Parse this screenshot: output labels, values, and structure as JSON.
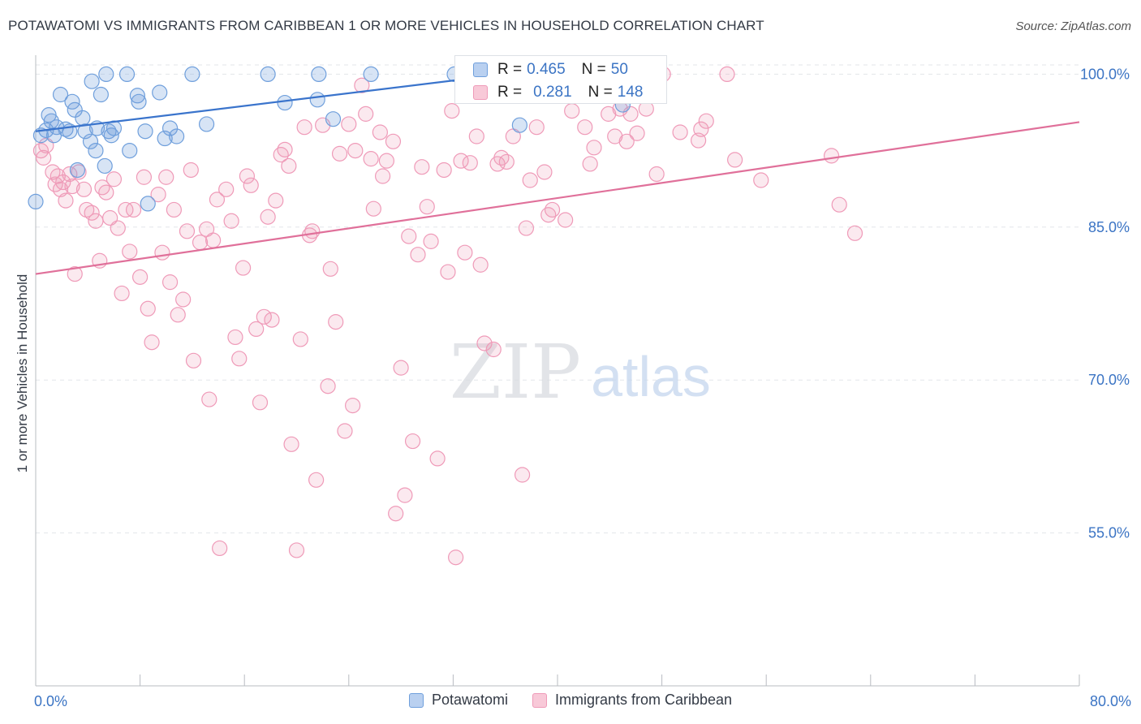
{
  "header": {
    "title": "POTAWATOMI VS IMMIGRANTS FROM CARIBBEAN 1 OR MORE VEHICLES IN HOUSEHOLD CORRELATION CHART",
    "source": "Source: ZipAtlas.com"
  },
  "watermark": {
    "zip": "ZIP",
    "atlas": "atlas"
  },
  "legend_top": {
    "r_label": "R =",
    "n_label": "N =",
    "rows": [
      {
        "r": "0.465",
        "n": "50"
      },
      {
        "r": "0.281",
        "n": "148"
      }
    ]
  },
  "chart_data": {
    "type": "scatter",
    "title": "POTAWATOMI VS IMMIGRANTS FROM CARIBBEAN 1 OR MORE VEHICLES IN HOUSEHOLD CORRELATION CHART",
    "xlabel": "",
    "ylabel": "1 or more Vehicles in Household",
    "xlim": [
      0,
      80
    ],
    "ylim": [
      40,
      102.5
    ],
    "x_tick_labels": [
      "0.0%",
      "80.0%"
    ],
    "y_ticks": [
      55,
      70,
      85,
      100
    ],
    "y_tick_labels": [
      "55.0%",
      "70.0%",
      "85.0%",
      "100.0%"
    ],
    "grid": true,
    "legend_position": "bottom",
    "colors": {
      "blue": "#6f9fdc",
      "pink": "#ef9ab8",
      "blue_line": "#3a74cc",
      "pink_line": "#e0709a",
      "tick_label": "#3b74c4"
    },
    "series": [
      {
        "name": "Potawatomi",
        "color": "blue",
        "r": 0.465,
        "n": 50,
        "trend": {
          "x": [
            0.0,
            36.0
          ],
          "y": [
            94.4,
            100.0
          ]
        },
        "points": [
          [
            0.0,
            87.5
          ],
          [
            0.4,
            94.0
          ],
          [
            0.8,
            94.5
          ],
          [
            1.0,
            96.0
          ],
          [
            1.2,
            95.4
          ],
          [
            1.4,
            94.0
          ],
          [
            1.6,
            94.8
          ],
          [
            1.9,
            98.0
          ],
          [
            2.3,
            94.6
          ],
          [
            2.6,
            94.4
          ],
          [
            2.8,
            97.3
          ],
          [
            3.0,
            96.5
          ],
          [
            3.2,
            90.6
          ],
          [
            3.6,
            95.7
          ],
          [
            3.8,
            94.4
          ],
          [
            4.2,
            93.4
          ],
          [
            4.3,
            99.3
          ],
          [
            4.6,
            92.5
          ],
          [
            4.7,
            94.7
          ],
          [
            5.0,
            98.0
          ],
          [
            5.3,
            91.0
          ],
          [
            5.4,
            100.0
          ],
          [
            5.6,
            94.4
          ],
          [
            5.8,
            94.0
          ],
          [
            6.0,
            94.7
          ],
          [
            7.0,
            100.0
          ],
          [
            7.2,
            92.5
          ],
          [
            7.8,
            97.9
          ],
          [
            7.9,
            97.3
          ],
          [
            8.4,
            94.4
          ],
          [
            8.6,
            87.3
          ],
          [
            9.5,
            98.2
          ],
          [
            9.9,
            93.7
          ],
          [
            10.3,
            94.7
          ],
          [
            10.8,
            93.9
          ],
          [
            12.0,
            100.0
          ],
          [
            13.1,
            95.1
          ],
          [
            17.8,
            100.0
          ],
          [
            19.1,
            97.2
          ],
          [
            21.7,
            100.0
          ],
          [
            21.6,
            97.5
          ],
          [
            22.8,
            95.6
          ],
          [
            25.7,
            100.0
          ],
          [
            32.1,
            100.0
          ],
          [
            34.6,
            98.6
          ],
          [
            34.9,
            99.7
          ],
          [
            37.1,
            95.0
          ],
          [
            39.9,
            100.0
          ],
          [
            43.9,
            99.8
          ],
          [
            45.0,
            97.0
          ]
        ]
      },
      {
        "name": "Immigrants from Caribbean",
        "color": "pink",
        "r": 0.281,
        "n": 148,
        "trend": {
          "x": [
            0.0,
            80.0
          ],
          "y": [
            80.4,
            95.3
          ]
        },
        "points": [
          [
            0.4,
            92.5
          ],
          [
            0.6,
            91.8
          ],
          [
            0.8,
            93.0
          ],
          [
            1.3,
            90.4
          ],
          [
            1.5,
            89.2
          ],
          [
            1.7,
            90.0
          ],
          [
            1.9,
            88.7
          ],
          [
            2.1,
            89.4
          ],
          [
            2.3,
            87.6
          ],
          [
            2.6,
            90.2
          ],
          [
            2.8,
            89.0
          ],
          [
            3.0,
            80.4
          ],
          [
            3.3,
            90.4
          ],
          [
            3.7,
            88.7
          ],
          [
            3.9,
            86.7
          ],
          [
            4.3,
            86.4
          ],
          [
            4.6,
            85.6
          ],
          [
            4.9,
            81.7
          ],
          [
            5.1,
            88.9
          ],
          [
            5.4,
            88.4
          ],
          [
            5.7,
            85.9
          ],
          [
            6.0,
            89.7
          ],
          [
            6.3,
            84.9
          ],
          [
            6.6,
            78.5
          ],
          [
            6.9,
            86.7
          ],
          [
            7.2,
            82.6
          ],
          [
            7.5,
            86.7
          ],
          [
            8.0,
            80.1
          ],
          [
            8.3,
            89.9
          ],
          [
            8.6,
            77.0
          ],
          [
            8.9,
            73.7
          ],
          [
            9.4,
            88.2
          ],
          [
            9.7,
            82.5
          ],
          [
            10.0,
            89.9
          ],
          [
            10.3,
            79.6
          ],
          [
            10.6,
            86.7
          ],
          [
            10.9,
            76.4
          ],
          [
            11.3,
            77.9
          ],
          [
            11.6,
            84.6
          ],
          [
            11.9,
            90.6
          ],
          [
            12.1,
            71.9
          ],
          [
            12.6,
            83.5
          ],
          [
            13.1,
            84.8
          ],
          [
            13.3,
            68.1
          ],
          [
            13.6,
            83.7
          ],
          [
            13.9,
            87.7
          ],
          [
            14.1,
            53.5
          ],
          [
            14.6,
            88.7
          ],
          [
            15.0,
            85.6
          ],
          [
            15.3,
            74.2
          ],
          [
            15.6,
            72.1
          ],
          [
            15.9,
            81.0
          ],
          [
            16.2,
            90.0
          ],
          [
            16.5,
            89.1
          ],
          [
            16.9,
            75.0
          ],
          [
            17.2,
            67.8
          ],
          [
            17.5,
            76.2
          ],
          [
            17.8,
            86.0
          ],
          [
            18.1,
            75.9
          ],
          [
            18.4,
            87.6
          ],
          [
            18.8,
            92.1
          ],
          [
            19.1,
            92.6
          ],
          [
            19.4,
            91.0
          ],
          [
            19.6,
            63.7
          ],
          [
            20.0,
            53.3
          ],
          [
            20.3,
            74.0
          ],
          [
            20.6,
            94.8
          ],
          [
            21.0,
            84.2
          ],
          [
            21.2,
            84.6
          ],
          [
            21.5,
            60.2
          ],
          [
            22.0,
            95.0
          ],
          [
            22.4,
            69.4
          ],
          [
            22.6,
            80.9
          ],
          [
            23.0,
            75.7
          ],
          [
            23.3,
            92.2
          ],
          [
            23.7,
            65.0
          ],
          [
            24.0,
            95.1
          ],
          [
            24.3,
            67.5
          ],
          [
            24.5,
            92.5
          ],
          [
            25.0,
            98.9
          ],
          [
            25.3,
            96.1
          ],
          [
            25.7,
            91.7
          ],
          [
            25.9,
            86.8
          ],
          [
            26.4,
            94.3
          ],
          [
            26.6,
            90.0
          ],
          [
            26.9,
            91.5
          ],
          [
            27.4,
            93.4
          ],
          [
            27.6,
            56.9
          ],
          [
            28.0,
            71.2
          ],
          [
            28.3,
            58.7
          ],
          [
            28.6,
            84.1
          ],
          [
            28.9,
            64.0
          ],
          [
            29.3,
            82.3
          ],
          [
            29.6,
            90.9
          ],
          [
            30.0,
            87.0
          ],
          [
            30.3,
            83.6
          ],
          [
            30.8,
            62.3
          ],
          [
            31.3,
            90.6
          ],
          [
            31.6,
            80.6
          ],
          [
            31.9,
            96.4
          ],
          [
            32.2,
            52.6
          ],
          [
            32.6,
            91.5
          ],
          [
            32.9,
            82.5
          ],
          [
            33.3,
            91.3
          ],
          [
            33.8,
            93.9
          ],
          [
            34.1,
            81.3
          ],
          [
            34.4,
            73.6
          ],
          [
            35.1,
            73.0
          ],
          [
            35.4,
            91.2
          ],
          [
            35.7,
            91.8
          ],
          [
            36.1,
            91.4
          ],
          [
            36.6,
            93.9
          ],
          [
            37.3,
            60.7
          ],
          [
            37.6,
            84.9
          ],
          [
            37.9,
            89.6
          ],
          [
            38.4,
            94.8
          ],
          [
            39.0,
            90.4
          ],
          [
            39.3,
            86.2
          ],
          [
            39.6,
            86.7
          ],
          [
            40.6,
            85.7
          ],
          [
            41.1,
            96.4
          ],
          [
            41.7,
            98.0
          ],
          [
            42.1,
            94.8
          ],
          [
            42.5,
            91.2
          ],
          [
            42.8,
            92.8
          ],
          [
            43.4,
            100.0
          ],
          [
            43.9,
            96.1
          ],
          [
            44.4,
            93.9
          ],
          [
            44.8,
            96.6
          ],
          [
            45.3,
            93.4
          ],
          [
            45.6,
            96.1
          ],
          [
            46.1,
            94.2
          ],
          [
            46.8,
            96.6
          ],
          [
            47.6,
            90.2
          ],
          [
            48.1,
            100.0
          ],
          [
            49.4,
            94.3
          ],
          [
            50.8,
            93.5
          ],
          [
            51.0,
            94.6
          ],
          [
            51.4,
            95.4
          ],
          [
            53.0,
            100.0
          ],
          [
            53.6,
            91.6
          ],
          [
            55.6,
            89.6
          ],
          [
            61.0,
            92.0
          ],
          [
            61.6,
            87.2
          ],
          [
            62.8,
            84.4
          ]
        ]
      }
    ]
  }
}
